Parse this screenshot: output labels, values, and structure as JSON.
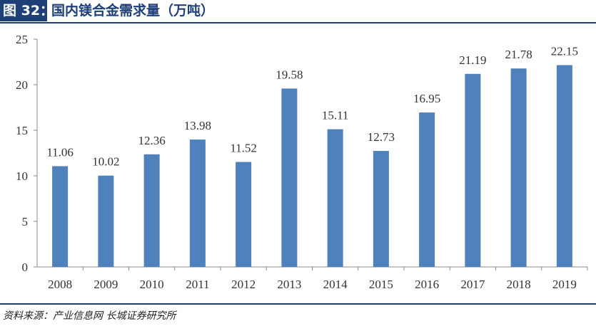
{
  "header": {
    "figure_label": "图 32：",
    "title": "国内镁合金需求量（万吨）"
  },
  "footer": {
    "source": "资料来源：产业信息网 长城证券研究所"
  },
  "colors": {
    "bar": "#4f81bd",
    "header_bg": "#1e3f78",
    "axis": "#888888"
  },
  "chart_data": {
    "type": "bar",
    "categories": [
      "2008",
      "2009",
      "2010",
      "2011",
      "2012",
      "2013",
      "2014",
      "2015",
      "2016",
      "2017",
      "2018",
      "2019"
    ],
    "values": [
      11.06,
      10.02,
      12.36,
      13.98,
      11.52,
      19.58,
      15.11,
      12.73,
      16.95,
      21.19,
      21.78,
      22.15
    ],
    "value_labels": [
      "11.06",
      "10.02",
      "12.36",
      "13.98",
      "11.52",
      "19.58",
      "15.11",
      "12.73",
      "16.95",
      "21.19",
      "21.78",
      "22.15"
    ],
    "title": "国内镁合金需求量（万吨）",
    "xlabel": "",
    "ylabel": "",
    "ylim": [
      0,
      25
    ],
    "yticks": [
      0,
      5,
      10,
      15,
      20,
      25
    ],
    "grid": false,
    "legend": "none"
  }
}
